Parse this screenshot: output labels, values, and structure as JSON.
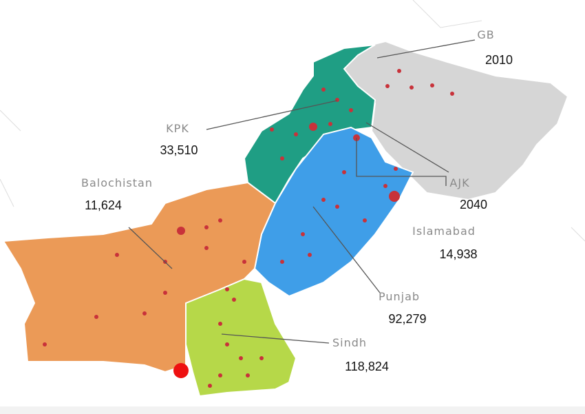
{
  "regions": [
    {
      "name": "GB",
      "value": "2010"
    },
    {
      "name": "KPK",
      "value": "33,510"
    },
    {
      "name": "Balochistan",
      "value": "11,624"
    },
    {
      "name": "AJK",
      "value": "2040"
    },
    {
      "name": "Islamabad",
      "value": "14,938"
    },
    {
      "name": "Punjab",
      "value": "92,279"
    },
    {
      "name": "Sindh",
      "value": "118,824"
    }
  ]
}
